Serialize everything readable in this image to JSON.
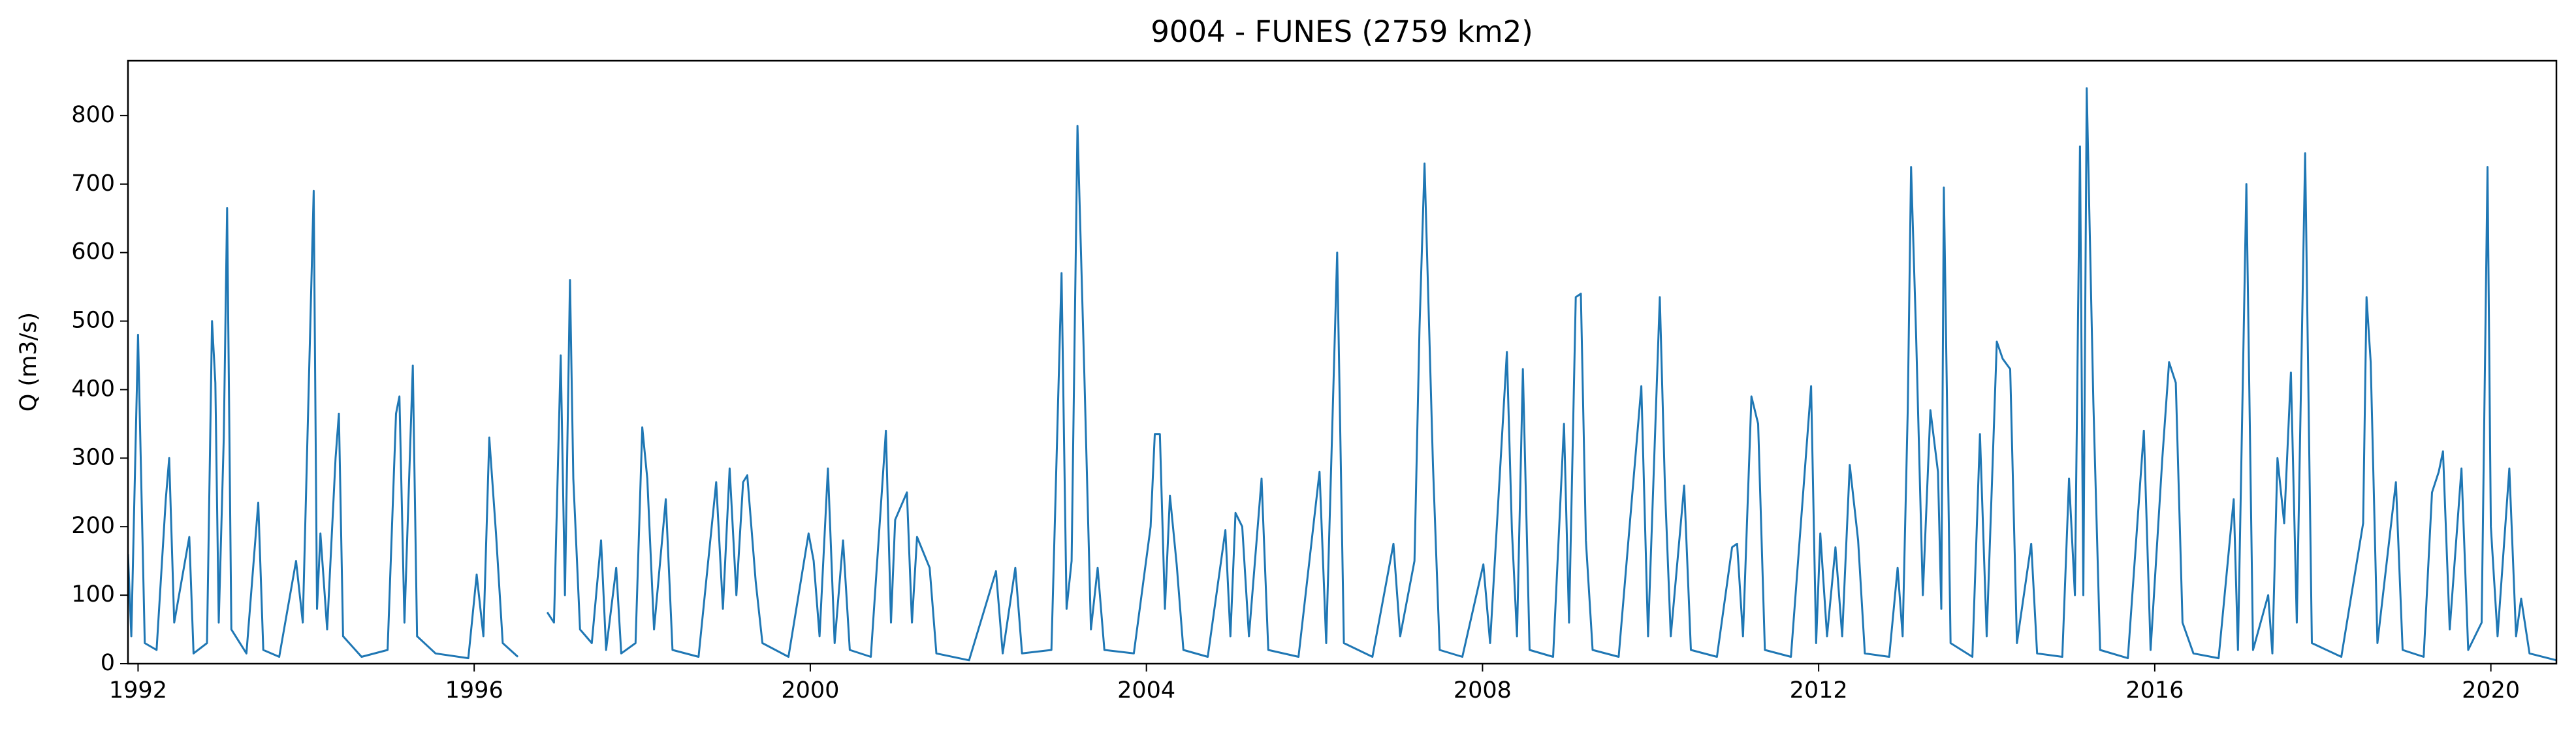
{
  "chart_data": {
    "type": "line",
    "title": "9004 - FUNES (2759 km2)",
    "y_label": "Q (m3/s)",
    "xlim": [
      1991.88,
      2020.78
    ],
    "ylim": [
      0,
      880
    ],
    "xticks": [
      1992,
      1996,
      2000,
      2004,
      2008,
      2012,
      2016,
      2020
    ],
    "yticks": [
      0,
      100,
      200,
      300,
      400,
      500,
      600,
      700,
      800
    ],
    "grid": false,
    "x": [
      1991.88,
      1991.92,
      1992.0,
      1992.08,
      1992.22,
      1992.33,
      1992.37,
      1992.43,
      1992.61,
      1992.66,
      1992.82,
      1992.88,
      1992.92,
      1992.96,
      1993.02,
      1993.06,
      1993.11,
      1993.29,
      1993.43,
      1993.49,
      1993.68,
      1993.88,
      1993.96,
      1994.09,
      1994.13,
      1994.17,
      1994.25,
      1994.35,
      1994.39,
      1994.44,
      1994.66,
      1994.97,
      1995.07,
      1995.11,
      1995.17,
      1995.27,
      1995.32,
      1995.54,
      1995.93,
      1996.03,
      1996.11,
      1996.18,
      1996.26,
      1996.34,
      1996.52,
      1996.7,
      1996.87,
      1996.95,
      1997.03,
      1997.08,
      1997.14,
      1997.18,
      1997.26,
      1997.4,
      1997.51,
      1997.57,
      1997.69,
      1997.75,
      1997.92,
      1998.0,
      1998.06,
      1998.14,
      1998.28,
      1998.36,
      1998.67,
      1998.88,
      1998.96,
      1999.04,
      1999.12,
      1999.2,
      1999.25,
      1999.35,
      1999.43,
      1999.74,
      1999.98,
      2000.04,
      2000.11,
      2000.21,
      2000.29,
      2000.39,
      2000.47,
      2000.72,
      2000.9,
      2000.96,
      2001.01,
      2001.15,
      2001.21,
      2001.27,
      2001.42,
      2001.5,
      2001.89,
      2002.21,
      2002.29,
      2002.44,
      2002.52,
      2002.87,
      2002.99,
      2003.05,
      2003.11,
      2003.18,
      2003.26,
      2003.34,
      2003.42,
      2003.5,
      2003.85,
      2004.05,
      2004.1,
      2004.16,
      2004.22,
      2004.28,
      2004.36,
      2004.44,
      2004.73,
      2004.94,
      2005.0,
      2005.06,
      2005.14,
      2005.22,
      2005.37,
      2005.45,
      2005.81,
      2006.0,
      2006.06,
      2006.14,
      2006.27,
      2006.35,
      2006.69,
      2006.94,
      2007.02,
      2007.19,
      2007.25,
      2007.31,
      2007.41,
      2007.49,
      2007.76,
      2008.01,
      2008.09,
      2008.29,
      2008.35,
      2008.41,
      2008.48,
      2008.56,
      2008.84,
      2008.97,
      2009.03,
      2009.11,
      2009.17,
      2009.23,
      2009.31,
      2009.62,
      2009.89,
      2009.97,
      2010.11,
      2010.17,
      2010.24,
      2010.4,
      2010.48,
      2010.79,
      2010.97,
      2011.03,
      2011.1,
      2011.2,
      2011.28,
      2011.36,
      2011.67,
      2011.91,
      2011.97,
      2012.02,
      2012.1,
      2012.2,
      2012.28,
      2012.37,
      2012.47,
      2012.55,
      2012.84,
      2012.94,
      2013.0,
      2013.06,
      2013.1,
      2013.16,
      2013.24,
      2013.33,
      2013.42,
      2013.46,
      2013.49,
      2013.57,
      2013.83,
      2013.92,
      2014.0,
      2014.12,
      2014.19,
      2014.28,
      2014.36,
      2014.53,
      2014.6,
      2014.9,
      2014.98,
      2015.05,
      2015.11,
      2015.15,
      2015.19,
      2015.27,
      2015.35,
      2015.68,
      2015.87,
      2015.95,
      2016.09,
      2016.17,
      2016.25,
      2016.33,
      2016.46,
      2016.76,
      2016.94,
      2016.99,
      2017.09,
      2017.17,
      2017.35,
      2017.4,
      2017.46,
      2017.54,
      2017.62,
      2017.69,
      2017.79,
      2017.87,
      2018.22,
      2018.48,
      2018.52,
      2018.57,
      2018.65,
      2018.87,
      2018.95,
      2019.2,
      2019.3,
      2019.38,
      2019.43,
      2019.51,
      2019.65,
      2019.73,
      2019.89,
      2019.96,
      2020.0,
      2020.08,
      2020.22,
      2020.3,
      2020.36,
      2020.46,
      2020.78
    ],
    "series": [
      {
        "name": "Q",
        "color": "#1f77b4",
        "values": [
          160,
          40,
          480,
          30,
          20,
          240,
          300,
          60,
          185,
          15,
          30,
          500,
          410,
          60,
          330,
          665,
          50,
          15,
          235,
          20,
          10,
          150,
          60,
          690,
          80,
          190,
          50,
          300,
          365,
          40,
          10,
          20,
          365,
          390,
          60,
          435,
          40,
          15,
          8,
          130,
          40,
          330,
          190,
          30,
          10,
          null,
          75,
          60,
          450,
          100,
          560,
          270,
          50,
          30,
          180,
          20,
          140,
          15,
          30,
          345,
          270,
          50,
          240,
          20,
          10,
          265,
          80,
          285,
          100,
          265,
          275,
          120,
          30,
          10,
          190,
          150,
          40,
          285,
          30,
          180,
          20,
          10,
          340,
          60,
          210,
          250,
          60,
          185,
          140,
          15,
          5,
          135,
          15,
          140,
          15,
          20,
          570,
          80,
          150,
          785,
          430,
          50,
          140,
          20,
          15,
          200,
          335,
          335,
          80,
          245,
          145,
          20,
          10,
          195,
          40,
          220,
          200,
          40,
          270,
          20,
          10,
          215,
          280,
          30,
          600,
          30,
          10,
          175,
          40,
          150,
          490,
          730,
          290,
          20,
          10,
          145,
          30,
          455,
          195,
          40,
          430,
          20,
          10,
          350,
          60,
          535,
          540,
          180,
          20,
          10,
          405,
          40,
          535,
          260,
          40,
          260,
          20,
          10,
          170,
          175,
          40,
          390,
          350,
          20,
          10,
          405,
          30,
          190,
          40,
          170,
          40,
          290,
          180,
          15,
          10,
          140,
          40,
          370,
          725,
          480,
          100,
          370,
          280,
          80,
          695,
          30,
          10,
          335,
          40,
          470,
          445,
          430,
          30,
          175,
          15,
          10,
          270,
          100,
          755,
          100,
          840,
          380,
          20,
          8,
          340,
          20,
          300,
          440,
          410,
          60,
          15,
          8,
          240,
          20,
          700,
          20,
          100,
          15,
          300,
          205,
          425,
          60,
          745,
          30,
          10,
          205,
          535,
          440,
          30,
          265,
          20,
          10,
          250,
          280,
          310,
          50,
          285,
          20,
          60,
          725,
          200,
          40,
          285,
          40,
          95,
          15,
          5
        ]
      }
    ]
  }
}
